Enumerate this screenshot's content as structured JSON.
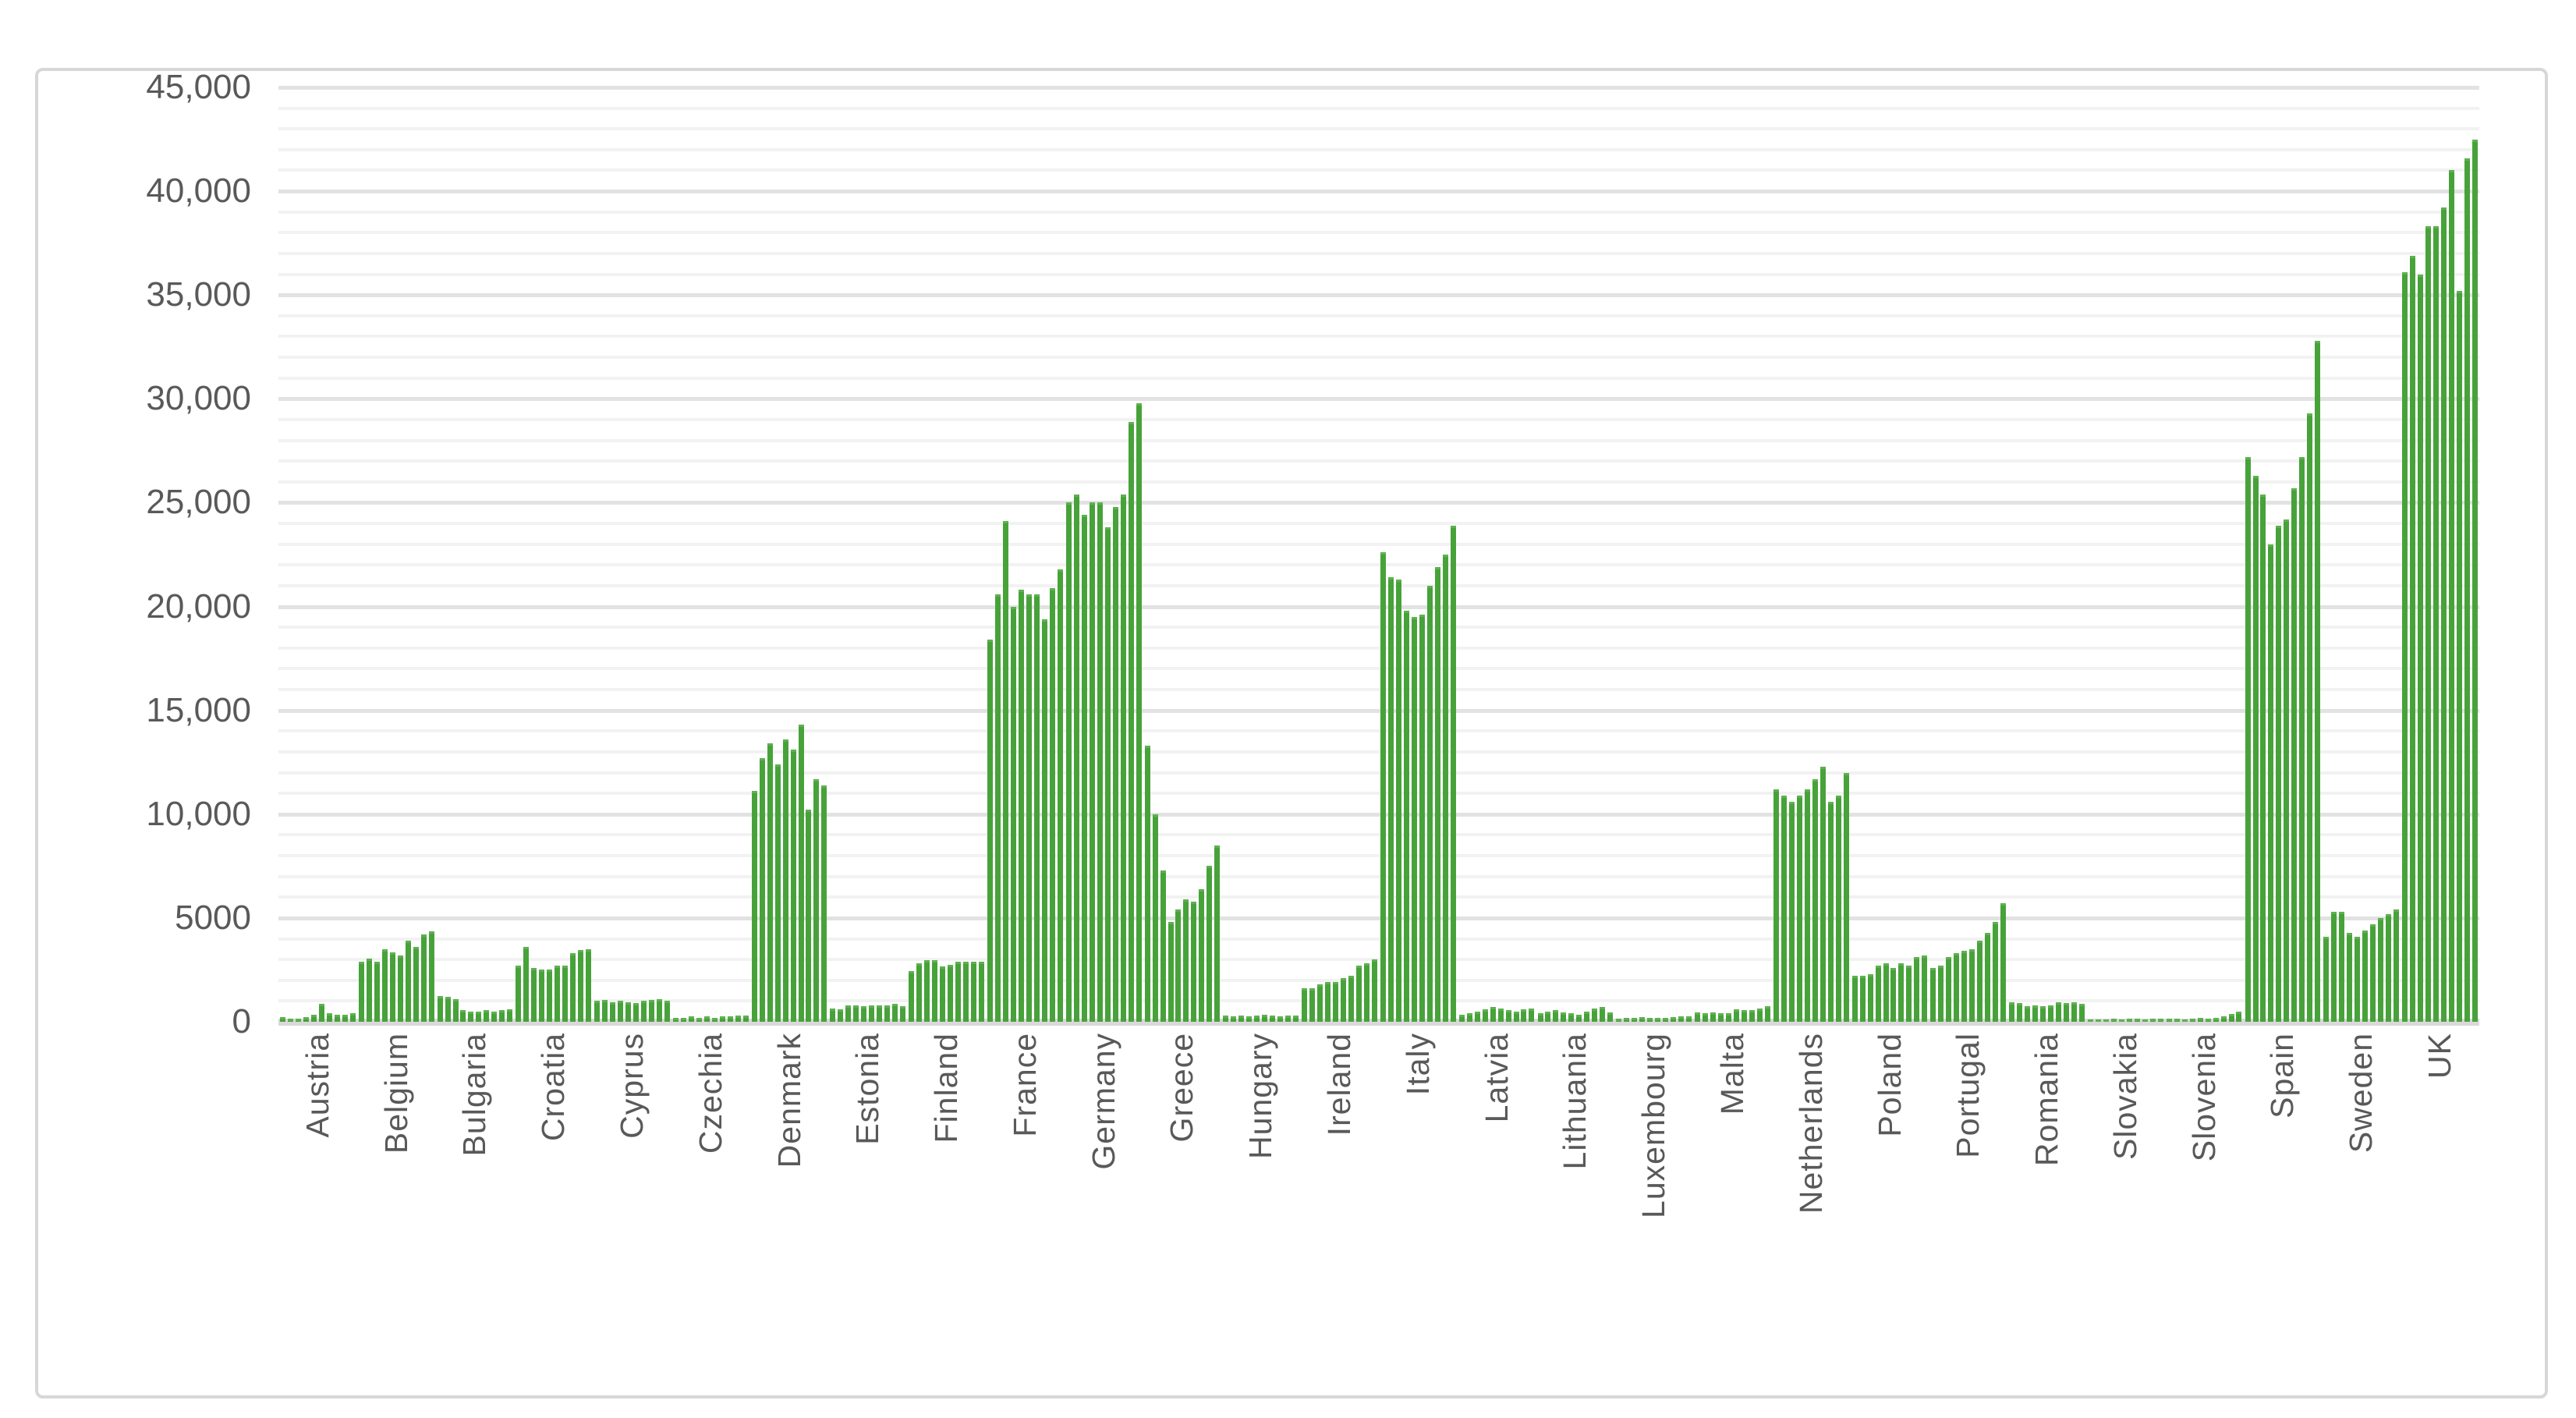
{
  "chart_data": {
    "type": "bar",
    "title": "",
    "xlabel": "",
    "ylabel": "",
    "ylim": [
      0,
      45000
    ],
    "grid": {
      "minor_step": 1000,
      "major_step": 5000,
      "minor_color": "#f2f2f2",
      "major_color": "#e2e2e2"
    },
    "legend": "none",
    "bar_color": "#47a23a",
    "axis_label_color": "#595959",
    "y_ticks": [
      {
        "value": 0,
        "label": "0"
      },
      {
        "value": 5000,
        "label": "5000"
      },
      {
        "value": 10000,
        "label": "10,000"
      },
      {
        "value": 15000,
        "label": "15,000"
      },
      {
        "value": 20000,
        "label": "20,000"
      },
      {
        "value": 25000,
        "label": "25,000"
      },
      {
        "value": 30000,
        "label": "30,000"
      },
      {
        "value": 35000,
        "label": "35,000"
      },
      {
        "value": 40000,
        "label": "40,000"
      },
      {
        "value": 45000,
        "label": "45,000"
      }
    ],
    "categories": [
      "Austria",
      "Belgium",
      "Bulgaria",
      "Croatia",
      "Cyprus",
      "Czechia",
      "Denmark",
      "Estonia",
      "Finland",
      "France",
      "Germany",
      "Greece",
      "Hungary",
      "Ireland",
      "Italy",
      "Latvia",
      "Lithuania",
      "Luxembourg",
      "Malta",
      "Netherlands",
      "Poland",
      "Portugal",
      "Romania",
      "Slovakia",
      "Slovenia",
      "Spain",
      "Sweden",
      "UK"
    ],
    "bars_per_category": 10,
    "per_category_values": [
      [
        220,
        150,
        150,
        220,
        350,
        850,
        400,
        350,
        350,
        400
      ],
      [
        2900,
        3060,
        2900,
        3480,
        3330,
        3190,
        3890,
        3600,
        4200,
        4350
      ],
      [
        1250,
        1200,
        1100,
        550,
        500,
        500,
        550,
        500,
        550,
        600
      ],
      [
        2700,
        3600,
        2600,
        2500,
        2500,
        2700,
        2700,
        3300,
        3450,
        3500
      ],
      [
        1000,
        1050,
        950,
        1000,
        950,
        900,
        1000,
        1050,
        1100,
        1000
      ],
      [
        200,
        200,
        250,
        200,
        250,
        200,
        250,
        250,
        300,
        300
      ],
      [
        11100,
        12700,
        13400,
        12400,
        13600,
        13100,
        14300,
        10200,
        11700,
        11400
      ],
      [
        650,
        600,
        800,
        800,
        750,
        800,
        800,
        800,
        850,
        750
      ],
      [
        2450,
        2800,
        2950,
        2950,
        2650,
        2750,
        2900,
        2900,
        2900,
        2900
      ],
      [
        18400,
        20600,
        24100,
        20000,
        20800,
        20600,
        20600,
        19400,
        20900,
        21800
      ],
      [
        25000,
        25400,
        24400,
        25000,
        25000,
        23800,
        24800,
        25400,
        28900,
        29800
      ],
      [
        13300,
        10000,
        7300,
        4800,
        5400,
        5900,
        5800,
        6400,
        7500,
        8500
      ],
      [
        300,
        280,
        300,
        260,
        300,
        320,
        300,
        270,
        300,
        310
      ],
      [
        1600,
        1600,
        1800,
        1900,
        1900,
        2100,
        2200,
        2700,
        2800,
        3000
      ],
      [
        22600,
        21400,
        21300,
        19800,
        19500,
        19600,
        21000,
        21900,
        22500,
        23900
      ],
      [
        350,
        400,
        500,
        600,
        700,
        650,
        550,
        500,
        600,
        650
      ],
      [
        400,
        500,
        550,
        450,
        400,
        350,
        500,
        650,
        700,
        450
      ],
      [
        150,
        180,
        200,
        220,
        200,
        180,
        200,
        220,
        250,
        250
      ],
      [
        450,
        400,
        450,
        400,
        400,
        600,
        550,
        550,
        650,
        750
      ],
      [
        11200,
        10900,
        10600,
        10900,
        11200,
        11700,
        12300,
        10600,
        10900,
        12000
      ],
      [
        2200,
        2200,
        2300,
        2700,
        2800,
        2600,
        2800,
        2700,
        3100,
        3200
      ],
      [
        2600,
        2700,
        3100,
        3300,
        3400,
        3500,
        3900,
        4300,
        4800,
        5700
      ],
      [
        950,
        900,
        750,
        800,
        750,
        800,
        950,
        900,
        950,
        850
      ],
      [
        120,
        120,
        100,
        150,
        120,
        150,
        150,
        120,
        150,
        150
      ],
      [
        150,
        150,
        120,
        150,
        180,
        150,
        200,
        250,
        380,
        500
      ],
      [
        27200,
        26300,
        25400,
        23000,
        23900,
        24200,
        25700,
        27200,
        29300,
        32800
      ],
      [
        4100,
        5300,
        5300,
        4300,
        4100,
        4400,
        4700,
        5000,
        5200,
        5400
      ],
      [
        36100,
        36900,
        36000,
        38300,
        38300,
        39200,
        41000,
        35200,
        41600,
        42500
      ]
    ]
  }
}
